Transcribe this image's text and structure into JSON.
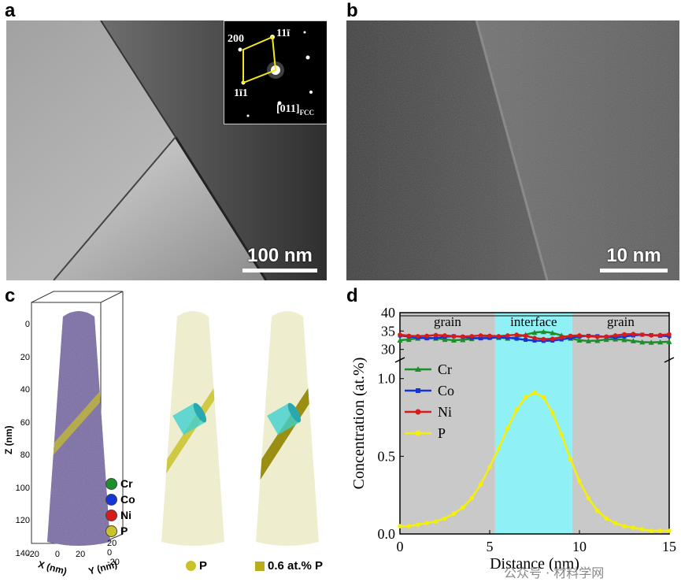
{
  "panels": {
    "a": {
      "letter": "a",
      "scale_label": "100 nm",
      "inset": {
        "l200": "200",
        "l111": "11ī",
        "l1b11": "1ī1",
        "zone": "[011]",
        "zone_sub": "FCC"
      }
    },
    "b": {
      "letter": "b",
      "scale_label": "10 nm"
    },
    "c": {
      "letter": "c",
      "z_axis_label": "Z (nm)",
      "z_ticks": [
        "0",
        "20",
        "40",
        "60",
        "80",
        "100",
        "120",
        "140"
      ],
      "x_axis_label": "X (nm)",
      "x_ticks": [
        "-20",
        "0",
        "20"
      ],
      "y_axis_label": "Y (nm)",
      "y_ticks": [
        "20",
        "0",
        "-20"
      ],
      "legend": [
        {
          "label": "Cr",
          "color": "#1a8f2a"
        },
        {
          "label": "Co",
          "color": "#1535d8"
        },
        {
          "label": "Ni",
          "color": "#d81a1a"
        },
        {
          "label": "P",
          "color": "#c9c22a"
        }
      ],
      "label_p": "P",
      "label_iso": "0.6 at.% P"
    },
    "d": {
      "letter": "d"
    }
  },
  "chart_data": {
    "type": "line",
    "xlabel": "Distance (nm)",
    "ylabel": "Concentration (at.%)",
    "xlim": [
      0,
      15
    ],
    "x_ticks": [
      "0",
      "5",
      "10",
      "15"
    ],
    "upper_yticks": [
      "30",
      "35",
      "40"
    ],
    "lower_yticks": [
      "0.0",
      "0.5",
      "1.0"
    ],
    "upper_ylim": [
      28,
      40
    ],
    "lower_ylim": [
      0,
      1.1
    ],
    "regions": [
      {
        "label": "grain",
        "x0": 0,
        "x1": 5.3
      },
      {
        "label": "interface",
        "x0": 5.3,
        "x1": 9.6
      },
      {
        "label": "grain",
        "x0": 9.6,
        "x1": 15
      }
    ],
    "x": [
      0,
      0.5,
      1,
      1.5,
      2,
      2.5,
      3,
      3.5,
      4,
      4.5,
      5,
      5.5,
      6,
      6.5,
      7,
      7.5,
      8,
      8.5,
      9,
      9.5,
      10,
      10.5,
      11,
      11.5,
      12,
      12.5,
      13,
      13.5,
      14,
      14.5,
      15
    ],
    "series": [
      {
        "name": "Cr",
        "color": "#1a8f2a",
        "marker": "triangle",
        "panel": "upper",
        "values": [
          32.5,
          32.7,
          33.0,
          33.2,
          33.0,
          32.7,
          32.5,
          32.6,
          32.9,
          33.2,
          33.3,
          33.2,
          33.0,
          33.3,
          34.0,
          34.6,
          34.8,
          34.5,
          33.8,
          33.0,
          32.5,
          32.3,
          32.4,
          32.7,
          32.8,
          32.6,
          32.3,
          32.0,
          31.9,
          32.0,
          32.1
        ]
      },
      {
        "name": "Co",
        "color": "#1535d8",
        "marker": "square",
        "panel": "upper",
        "values": [
          33.8,
          33.5,
          33.2,
          33.0,
          33.1,
          33.4,
          33.6,
          33.4,
          33.1,
          33.0,
          33.1,
          33.3,
          33.2,
          32.9,
          32.6,
          32.4,
          32.3,
          32.4,
          32.7,
          33.1,
          33.5,
          33.7,
          33.6,
          33.4,
          33.3,
          33.5,
          33.8,
          34.0,
          33.9,
          33.7,
          33.6
        ]
      },
      {
        "name": "Ni",
        "color": "#d81a1a",
        "marker": "circle",
        "panel": "upper",
        "values": [
          34.0,
          33.7,
          33.6,
          33.7,
          33.9,
          33.8,
          33.6,
          33.5,
          33.6,
          33.8,
          33.7,
          33.6,
          33.8,
          34.0,
          33.7,
          33.1,
          32.8,
          32.9,
          33.3,
          33.7,
          33.8,
          33.6,
          33.4,
          33.5,
          33.8,
          34.1,
          34.2,
          34.0,
          33.8,
          33.9,
          34.1
        ]
      },
      {
        "name": "P",
        "color": "#ffff1a",
        "marker": "circle",
        "panel": "lower",
        "values": [
          0.05,
          0.05,
          0.06,
          0.07,
          0.08,
          0.1,
          0.13,
          0.17,
          0.23,
          0.32,
          0.43,
          0.55,
          0.68,
          0.8,
          0.88,
          0.91,
          0.88,
          0.78,
          0.64,
          0.48,
          0.34,
          0.23,
          0.15,
          0.1,
          0.07,
          0.05,
          0.04,
          0.03,
          0.02,
          0.02,
          0.02
        ]
      }
    ]
  },
  "watermark": "公众号 · 材料学网"
}
